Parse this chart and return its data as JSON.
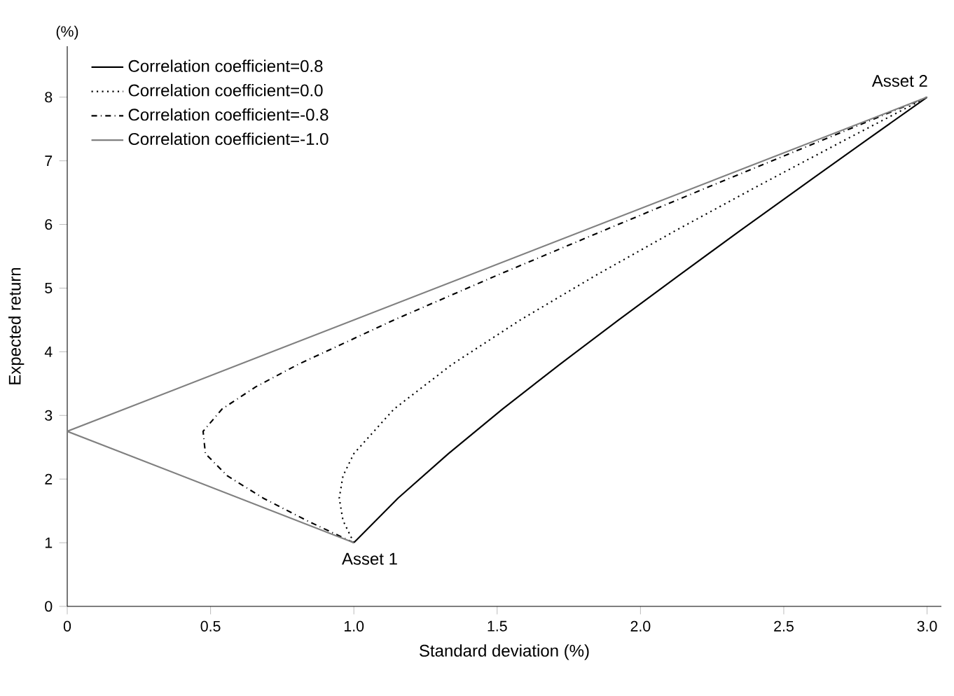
{
  "chart_data": {
    "type": "line",
    "xlabel": "Standard deviation (%)",
    "ylabel": "Expected return",
    "xlim": [
      0,
      3.05
    ],
    "ylim": [
      0,
      8.8
    ],
    "xticks": [
      0,
      0.5,
      {
        "value": 1,
        "label": "1.0"
      },
      1.5,
      {
        "value": 2,
        "label": "2.0"
      },
      2.5,
      {
        "value": 3,
        "label": "3.0"
      }
    ],
    "yticks": [
      0,
      1,
      2,
      3,
      4,
      5,
      6,
      7,
      8
    ],
    "legend": "top left",
    "grid": false,
    "marker": "none",
    "annotations": [
      "(%)",
      {
        "text": "Asset 1",
        "x": 1,
        "y": 1
      },
      {
        "text": "Asset 2",
        "x": 3,
        "y": 8
      }
    ],
    "series": [
      {
        "name": "Correlation coefficient=0.8",
        "color": "#000000",
        "line_style": "solid",
        "x": [
          1,
          1.154,
          1.33,
          1.519,
          1.718,
          1.924,
          2.134,
          2.347,
          2.563,
          2.781,
          3
        ],
        "values": [
          1,
          1.7,
          2.4,
          3.1,
          3.8,
          4.5,
          5.2,
          5.9,
          6.6,
          7.3,
          8
        ]
      },
      {
        "name": "Correlation coefficient=0.0",
        "color": "#000000",
        "line_style": "dotted",
        "x": [
          1,
          0.962,
          0.949,
          0.962,
          1,
          1.14,
          1.342,
          1.581,
          1.844,
          2.121,
          2.408,
          2.702,
          3
        ],
        "values": [
          1,
          1.35,
          1.7,
          2.05,
          2.4,
          3.1,
          3.8,
          4.5,
          5.2,
          5.9,
          6.6,
          7.3,
          8
        ]
      },
      {
        "name": "Correlation coefficient=-0.8",
        "color": "#000000",
        "line_style": "dashdot",
        "x": [
          1,
          0.835,
          0.684,
          0.559,
          0.482,
          0.474,
          0.54,
          0.658,
          0.805,
          1.14,
          1.499,
          1.869,
          2.243,
          2.621,
          3
        ],
        "values": [
          1,
          1.35,
          1.7,
          2.05,
          2.4,
          2.75,
          3.1,
          3.45,
          3.8,
          4.5,
          5.2,
          5.9,
          6.6,
          7.3,
          8
        ]
      },
      {
        "name": "Correlation coefficient=-1.0",
        "color": "#808080",
        "line_style": "solid",
        "x": [
          1,
          0,
          3
        ],
        "values": [
          1,
          2.75,
          8
        ]
      }
    ]
  }
}
